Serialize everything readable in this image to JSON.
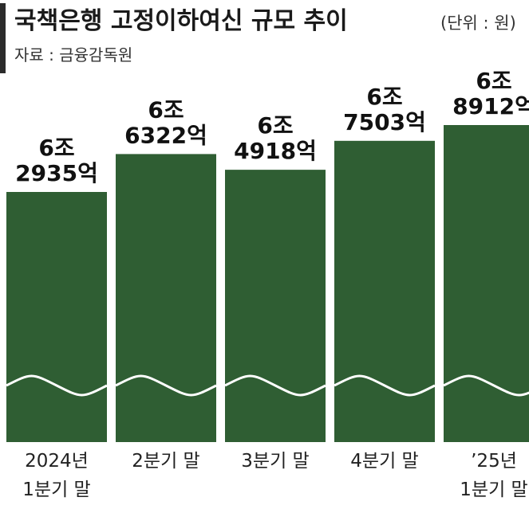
{
  "header": {
    "title": "국책은행 고정이하여신 규모 추이",
    "unit": "(단위 : 원)",
    "source": "자료 : 금융감독원"
  },
  "colors": {
    "bar": "#2f5e33",
    "accent_bar": "#2b2b2b",
    "text": "#1a1a1a"
  },
  "chart_data": {
    "type": "bar",
    "title": "국책은행 고정이하여신 규모 추이",
    "unit": "(단위 : 원)",
    "categories": [
      [
        "2024년",
        "1분기 말"
      ],
      [
        "2분기 말"
      ],
      [
        "3분기 말"
      ],
      [
        "4분기 말"
      ],
      [
        "’25년",
        "1분기 말"
      ]
    ],
    "values": [
      62935,
      66322,
      64918,
      67503,
      68912
    ],
    "value_unit": "억원",
    "data_labels": [
      [
        "6조",
        "2935억"
      ],
      [
        "6조",
        "6322억"
      ],
      [
        "6조",
        "4918억"
      ],
      [
        "6조",
        "7503억"
      ],
      [
        "6조",
        "8912억"
      ]
    ],
    "axis_break": true,
    "grid": false,
    "legend": "none"
  }
}
